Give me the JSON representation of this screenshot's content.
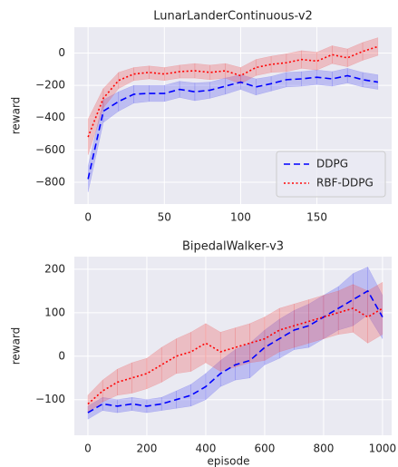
{
  "chart_data": [
    {
      "type": "line",
      "title": "LunarLanderContinuous-v2",
      "ylabel": "reward",
      "x": [
        0,
        10,
        20,
        30,
        40,
        50,
        60,
        70,
        80,
        90,
        100,
        110,
        120,
        130,
        140,
        150,
        160,
        170,
        180,
        190
      ],
      "series": [
        {
          "name": "DDPG",
          "color": "#0000ff",
          "band_color": "#5555ee",
          "dash": "dashed",
          "values": [
            -780,
            -360,
            -300,
            -255,
            -250,
            -250,
            -225,
            -240,
            -230,
            -205,
            -180,
            -210,
            -190,
            -165,
            -160,
            -150,
            -160,
            -140,
            -165,
            -180
          ],
          "errors": [
            80,
            70,
            60,
            55,
            50,
            50,
            50,
            55,
            50,
            50,
            45,
            50,
            45,
            45,
            45,
            45,
            45,
            45,
            45,
            45
          ]
        },
        {
          "name": "RBF-DDPG",
          "color": "#ff0000",
          "band_color": "#ee5555",
          "dash": "dotted",
          "values": [
            -520,
            -280,
            -170,
            -130,
            -120,
            -130,
            -115,
            -110,
            -120,
            -110,
            -140,
            -90,
            -70,
            -60,
            -40,
            -50,
            -10,
            -30,
            10,
            40
          ],
          "errors": [
            110,
            60,
            50,
            40,
            40,
            40,
            40,
            45,
            45,
            45,
            50,
            50,
            50,
            55,
            55,
            55,
            55,
            55,
            55,
            55
          ]
        }
      ],
      "xlim": [
        -9,
        199
      ],
      "ylim": [
        -935,
        160
      ],
      "xticks": [
        0,
        50,
        100,
        150
      ],
      "yticks": [
        {
          "value": -800,
          "label": "−800"
        },
        {
          "value": -600,
          "label": "−600"
        },
        {
          "value": -400,
          "label": "−400"
        },
        {
          "value": -200,
          "label": "−200"
        },
        0
      ],
      "grid": true,
      "legend": "lower right"
    },
    {
      "type": "line",
      "title": "BipedalWalker-v3",
      "ylabel": "reward",
      "xlabel": "episode",
      "x": [
        0,
        50,
        100,
        150,
        200,
        250,
        300,
        350,
        400,
        450,
        500,
        550,
        600,
        650,
        700,
        750,
        800,
        850,
        900,
        950,
        1000
      ],
      "series": [
        {
          "name": "DDPG",
          "color": "#0000ff",
          "band_color": "#5555ee",
          "dash": "dashed",
          "values": [
            -130,
            -110,
            -115,
            -110,
            -115,
            -110,
            -100,
            -90,
            -70,
            -40,
            -20,
            -10,
            20,
            40,
            60,
            70,
            90,
            110,
            130,
            150,
            90
          ],
          "errors": [
            15,
            15,
            15,
            15,
            15,
            15,
            20,
            25,
            30,
            30,
            35,
            40,
            40,
            45,
            45,
            50,
            50,
            50,
            60,
            55,
            50
          ]
        },
        {
          "name": "RBF-DDPG",
          "color": "#ff0000",
          "band_color": "#ee5555",
          "dash": "dotted",
          "values": [
            -110,
            -80,
            -60,
            -50,
            -40,
            -20,
            0,
            10,
            30,
            10,
            20,
            30,
            40,
            60,
            70,
            80,
            90,
            100,
            110,
            90,
            110
          ],
          "errors": [
            20,
            25,
            30,
            35,
            35,
            40,
            40,
            45,
            45,
            45,
            45,
            45,
            50,
            50,
            50,
            50,
            50,
            50,
            55,
            60,
            60
          ]
        }
      ],
      "xlim": [
        -46,
        1031
      ],
      "ylim": [
        -182,
        229
      ],
      "xticks": [
        0,
        200,
        400,
        600,
        800,
        1000
      ],
      "yticks": [
        {
          "value": -100,
          "label": "−100"
        },
        0,
        100,
        200
      ],
      "grid": true
    }
  ]
}
